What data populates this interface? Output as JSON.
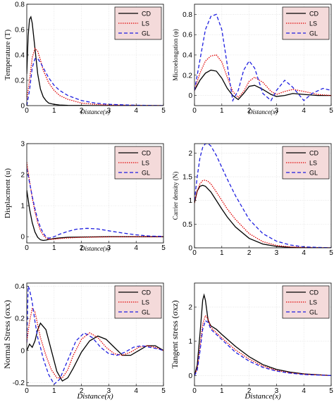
{
  "legend_entries": [
    "CD",
    "LS",
    "GL"
  ],
  "colors": {
    "CD": "#000000",
    "LS": "#e00000",
    "GL": "#1f1fe0",
    "legend_bg": "#f4dada"
  },
  "chart_data": [
    {
      "type": "line",
      "ylabel": "Temperature (T)",
      "xlabel": "Distance(x)",
      "xlim": [
        0,
        5
      ],
      "ylim": [
        0,
        0.8
      ],
      "xticks": [
        "0",
        "1",
        "2",
        "3",
        "4",
        "5"
      ],
      "yticks": [
        "0",
        "0.2",
        "0.4",
        "0.6",
        "0.8"
      ],
      "legend": "top-right",
      "grid": true,
      "series": [
        {
          "name": "CD",
          "style": "solid",
          "x": [
            0,
            0.05,
            0.1,
            0.15,
            0.2,
            0.3,
            0.4,
            0.5,
            0.6,
            0.7,
            0.8,
            1.0,
            1.2,
            1.5,
            2,
            5
          ],
          "y": [
            0.25,
            0.55,
            0.68,
            0.7,
            0.65,
            0.45,
            0.25,
            0.13,
            0.07,
            0.04,
            0.02,
            0.01,
            0.005,
            0.002,
            0.001,
            0
          ]
        },
        {
          "name": "LS",
          "style": "dotted",
          "x": [
            0,
            0.1,
            0.2,
            0.3,
            0.4,
            0.5,
            0.6,
            0.8,
            1.0,
            1.2,
            1.5,
            2,
            2.5,
            3,
            4,
            5
          ],
          "y": [
            0.05,
            0.2,
            0.38,
            0.45,
            0.43,
            0.36,
            0.28,
            0.18,
            0.12,
            0.08,
            0.05,
            0.02,
            0.01,
            0.005,
            0.002,
            0
          ]
        },
        {
          "name": "GL",
          "style": "dashed",
          "x": [
            0,
            0.1,
            0.2,
            0.3,
            0.4,
            0.5,
            0.6,
            0.8,
            1.0,
            1.2,
            1.5,
            2,
            2.5,
            3,
            4,
            5
          ],
          "y": [
            0.0,
            0.12,
            0.3,
            0.37,
            0.37,
            0.34,
            0.3,
            0.22,
            0.16,
            0.12,
            0.08,
            0.04,
            0.02,
            0.01,
            0.003,
            0
          ]
        }
      ]
    },
    {
      "type": "line",
      "ylabel": "Microelongation (φ)",
      "xlabel": "Distance(x)",
      "xlim": [
        0,
        5
      ],
      "ylim": [
        -0.1,
        0.9
      ],
      "xticks": [
        "0",
        "1",
        "2",
        "3",
        "4",
        "5"
      ],
      "yticks": [
        "0",
        "0.2",
        "0.4",
        "0.6",
        "0.8"
      ],
      "legend": "top-right",
      "grid": true,
      "series": [
        {
          "name": "CD",
          "style": "solid",
          "x": [
            0,
            0.2,
            0.4,
            0.6,
            0.8,
            1.0,
            1.2,
            1.4,
            1.6,
            1.8,
            2.0,
            2.2,
            2.5,
            2.8,
            3.0,
            3.3,
            3.6,
            4.0,
            4.5,
            5
          ],
          "y": [
            0.05,
            0.15,
            0.22,
            0.25,
            0.24,
            0.17,
            0.07,
            0.0,
            -0.04,
            0.02,
            0.09,
            0.1,
            0.06,
            0.01,
            -0.01,
            0.0,
            0.02,
            0.01,
            0.0,
            0
          ]
        },
        {
          "name": "LS",
          "style": "dotted",
          "x": [
            0,
            0.2,
            0.4,
            0.6,
            0.8,
            1.0,
            1.2,
            1.4,
            1.6,
            1.8,
            2.0,
            2.2,
            2.5,
            2.8,
            3.0,
            3.3,
            3.6,
            4.0,
            4.5,
            5
          ],
          "y": [
            0.05,
            0.22,
            0.34,
            0.39,
            0.4,
            0.33,
            0.18,
            0.04,
            -0.02,
            0.04,
            0.14,
            0.18,
            0.13,
            0.04,
            0.01,
            0.04,
            0.06,
            0.04,
            0.01,
            0
          ]
        },
        {
          "name": "GL",
          "style": "dashed",
          "x": [
            0,
            0.2,
            0.4,
            0.6,
            0.8,
            1.0,
            1.2,
            1.4,
            1.6,
            1.8,
            2.0,
            2.2,
            2.5,
            2.8,
            3.0,
            3.3,
            3.6,
            4.0,
            4.3,
            4.7,
            5
          ],
          "y": [
            0.05,
            0.35,
            0.65,
            0.78,
            0.8,
            0.65,
            0.3,
            -0.05,
            0.05,
            0.25,
            0.34,
            0.27,
            0.02,
            -0.05,
            0.05,
            0.15,
            0.08,
            -0.05,
            0.02,
            0.07,
            0.05
          ]
        }
      ]
    },
    {
      "type": "line",
      "ylabel": "Displacment (u)",
      "xlabel": "Distance(x)",
      "xlim": [
        0,
        5
      ],
      "ylim": [
        -0.2,
        3
      ],
      "xticks": [
        "0",
        "1",
        "2",
        "3",
        "4",
        "5"
      ],
      "yticks": [
        "0",
        "1",
        "2",
        "3"
      ],
      "legend": "top-right",
      "grid": true,
      "series": [
        {
          "name": "CD",
          "style": "solid",
          "x": [
            0,
            0.1,
            0.2,
            0.3,
            0.4,
            0.5,
            0.6,
            0.7,
            0.8,
            1.0,
            1.2,
            1.5,
            2,
            3,
            4,
            5
          ],
          "y": [
            1.5,
            0.9,
            0.45,
            0.15,
            -0.02,
            -0.1,
            -0.12,
            -0.11,
            -0.09,
            -0.06,
            -0.04,
            -0.02,
            -0.01,
            0,
            0,
            0
          ]
        },
        {
          "name": "LS",
          "style": "dotted",
          "x": [
            0,
            0.1,
            0.2,
            0.3,
            0.4,
            0.5,
            0.6,
            0.7,
            0.8,
            1.0,
            1.2,
            1.5,
            2,
            3,
            4,
            5
          ],
          "y": [
            2.4,
            1.8,
            1.25,
            0.8,
            0.45,
            0.2,
            0.05,
            -0.04,
            -0.08,
            -0.08,
            -0.06,
            -0.04,
            -0.02,
            -0.005,
            0,
            0
          ]
        },
        {
          "name": "GL",
          "style": "dashed",
          "x": [
            0,
            0.1,
            0.2,
            0.3,
            0.4,
            0.5,
            0.6,
            0.7,
            0.8,
            1.0,
            1.2,
            1.5,
            1.8,
            2.2,
            2.6,
            3.0,
            3.5,
            4.0,
            4.5,
            5
          ],
          "y": [
            2.2,
            1.75,
            1.3,
            0.9,
            0.55,
            0.3,
            0.12,
            0.0,
            -0.05,
            0.0,
            0.08,
            0.17,
            0.24,
            0.27,
            0.25,
            0.19,
            0.12,
            0.06,
            0.02,
            0.01
          ]
        }
      ]
    },
    {
      "type": "line",
      "ylabel": "Carrier density (N)",
      "xlabel": "",
      "xlim": [
        0,
        5
      ],
      "ylim": [
        0,
        2.2
      ],
      "xticks": [
        "0",
        "1",
        "2",
        "3",
        "4",
        "5"
      ],
      "yticks": [
        "0",
        "0.5",
        "1",
        "1.5",
        "2"
      ],
      "legend": "top-right",
      "grid": true,
      "series": [
        {
          "name": "CD",
          "style": "solid",
          "x": [
            0,
            0.1,
            0.2,
            0.3,
            0.4,
            0.6,
            0.8,
            1.0,
            1.2,
            1.5,
            2.0,
            2.5,
            3.0,
            3.5,
            4.0,
            5
          ],
          "y": [
            0.95,
            1.2,
            1.3,
            1.32,
            1.3,
            1.18,
            1.0,
            0.82,
            0.65,
            0.44,
            0.2,
            0.08,
            0.03,
            0.01,
            0.0,
            0
          ]
        },
        {
          "name": "LS",
          "style": "dotted",
          "x": [
            0,
            0.1,
            0.2,
            0.3,
            0.4,
            0.5,
            0.6,
            0.8,
            1.0,
            1.2,
            1.5,
            2.0,
            2.5,
            3.0,
            3.5,
            4.0,
            5
          ],
          "y": [
            0.95,
            1.2,
            1.35,
            1.42,
            1.43,
            1.4,
            1.35,
            1.18,
            1.0,
            0.82,
            0.6,
            0.3,
            0.13,
            0.05,
            0.02,
            0.01,
            0
          ]
        },
        {
          "name": "GL",
          "style": "dashed",
          "x": [
            0,
            0.1,
            0.2,
            0.3,
            0.4,
            0.5,
            0.6,
            0.8,
            1.0,
            1.2,
            1.5,
            2.0,
            2.5,
            3.0,
            3.5,
            4.0,
            5
          ],
          "y": [
            1.0,
            1.5,
            1.9,
            2.12,
            2.2,
            2.2,
            2.15,
            1.95,
            1.7,
            1.45,
            1.1,
            0.6,
            0.3,
            0.14,
            0.06,
            0.02,
            0
          ]
        }
      ]
    },
    {
      "type": "line",
      "ylabel": "Normal Stress (σxx)",
      "xlabel": "Distance(x)",
      "xlim": [
        0,
        5
      ],
      "ylim": [
        -0.22,
        0.42
      ],
      "xticks": [
        "0",
        "1",
        "2",
        "3",
        "4",
        "5"
      ],
      "yticks": [
        "-0.2",
        "0",
        "0.2",
        "0.4"
      ],
      "legend": "top-right",
      "grid": true,
      "series": [
        {
          "name": "CD",
          "style": "solid",
          "x": [
            0,
            0.1,
            0.2,
            0.3,
            0.4,
            0.5,
            0.7,
            0.9,
            1.1,
            1.3,
            1.5,
            1.7,
            2.0,
            2.3,
            2.6,
            2.9,
            3.2,
            3.5,
            3.8,
            4.1,
            4.4,
            4.7,
            5
          ],
          "y": [
            0.0,
            0.04,
            0.02,
            0.06,
            0.13,
            0.17,
            0.13,
            0.0,
            -0.13,
            -0.19,
            -0.17,
            -0.11,
            -0.01,
            0.06,
            0.09,
            0.07,
            0.02,
            -0.03,
            -0.03,
            0.0,
            0.03,
            0.03,
            0.0
          ]
        },
        {
          "name": "LS",
          "style": "dotted",
          "x": [
            0,
            0.1,
            0.2,
            0.3,
            0.4,
            0.5,
            0.7,
            0.9,
            1.1,
            1.3,
            1.5,
            1.7,
            2.0,
            2.3,
            2.6,
            2.9,
            3.2,
            3.5,
            3.8,
            4.1,
            4.4,
            4.7,
            5
          ],
          "y": [
            0.05,
            0.18,
            0.26,
            0.24,
            0.16,
            0.08,
            -0.03,
            -0.12,
            -0.17,
            -0.17,
            -0.12,
            -0.03,
            0.07,
            0.11,
            0.08,
            0.02,
            -0.02,
            -0.03,
            -0.01,
            0.02,
            0.03,
            0.02,
            0.0
          ]
        },
        {
          "name": "GL",
          "style": "dashed",
          "x": [
            0,
            0.05,
            0.1,
            0.2,
            0.3,
            0.4,
            0.5,
            0.6,
            0.8,
            1.0,
            1.2,
            1.5,
            1.8,
            2.1,
            2.4,
            2.7,
            3.0,
            3.3,
            3.6,
            3.9,
            4.2,
            4.5,
            4.8,
            5
          ],
          "y": [
            0.05,
            0.4,
            0.38,
            0.3,
            0.18,
            0.08,
            0.02,
            -0.05,
            -0.15,
            -0.21,
            -0.18,
            -0.06,
            0.06,
            0.11,
            0.08,
            0.02,
            -0.02,
            -0.03,
            -0.01,
            0.02,
            0.03,
            0.02,
            0.01,
            0.0
          ]
        }
      ]
    },
    {
      "type": "line",
      "ylabel": "Tangent stress (σxz)",
      "xlabel": "Distance(x)",
      "xlim": [
        0,
        5
      ],
      "ylim": [
        -0.3,
        2.7
      ],
      "xticks": [
        "0",
        "1",
        "2",
        "3",
        "4",
        "5"
      ],
      "yticks": [
        "0",
        "1",
        "2"
      ],
      "legend": "top-right",
      "grid": true,
      "series": [
        {
          "name": "CD",
          "style": "solid",
          "x": [
            0,
            0.1,
            0.2,
            0.3,
            0.35,
            0.4,
            0.5,
            0.6,
            0.8,
            1.0,
            1.5,
            2.0,
            2.5,
            3.0,
            3.5,
            4.0,
            5
          ],
          "y": [
            0.0,
            0.3,
            1.2,
            2.2,
            2.35,
            2.2,
            1.6,
            1.45,
            1.35,
            1.2,
            0.85,
            0.55,
            0.32,
            0.18,
            0.1,
            0.05,
            0
          ]
        },
        {
          "name": "LS",
          "style": "dotted",
          "x": [
            0,
            0.1,
            0.2,
            0.3,
            0.4,
            0.5,
            0.6,
            0.8,
            1.0,
            1.5,
            2.0,
            2.5,
            3.0,
            3.5,
            4.0,
            5
          ],
          "y": [
            0.0,
            0.2,
            0.8,
            1.5,
            1.75,
            1.65,
            1.4,
            1.25,
            1.1,
            0.75,
            0.48,
            0.28,
            0.15,
            0.08,
            0.04,
            0
          ]
        },
        {
          "name": "GL",
          "style": "dashed",
          "x": [
            0,
            0.1,
            0.2,
            0.3,
            0.4,
            0.5,
            0.6,
            0.8,
            1.0,
            1.5,
            2.0,
            2.5,
            3.0,
            3.5,
            4.0,
            5
          ],
          "y": [
            0.0,
            0.15,
            0.7,
            1.35,
            1.6,
            1.55,
            1.35,
            1.2,
            1.05,
            0.68,
            0.42,
            0.24,
            0.13,
            0.07,
            0.03,
            0
          ]
        }
      ]
    }
  ]
}
